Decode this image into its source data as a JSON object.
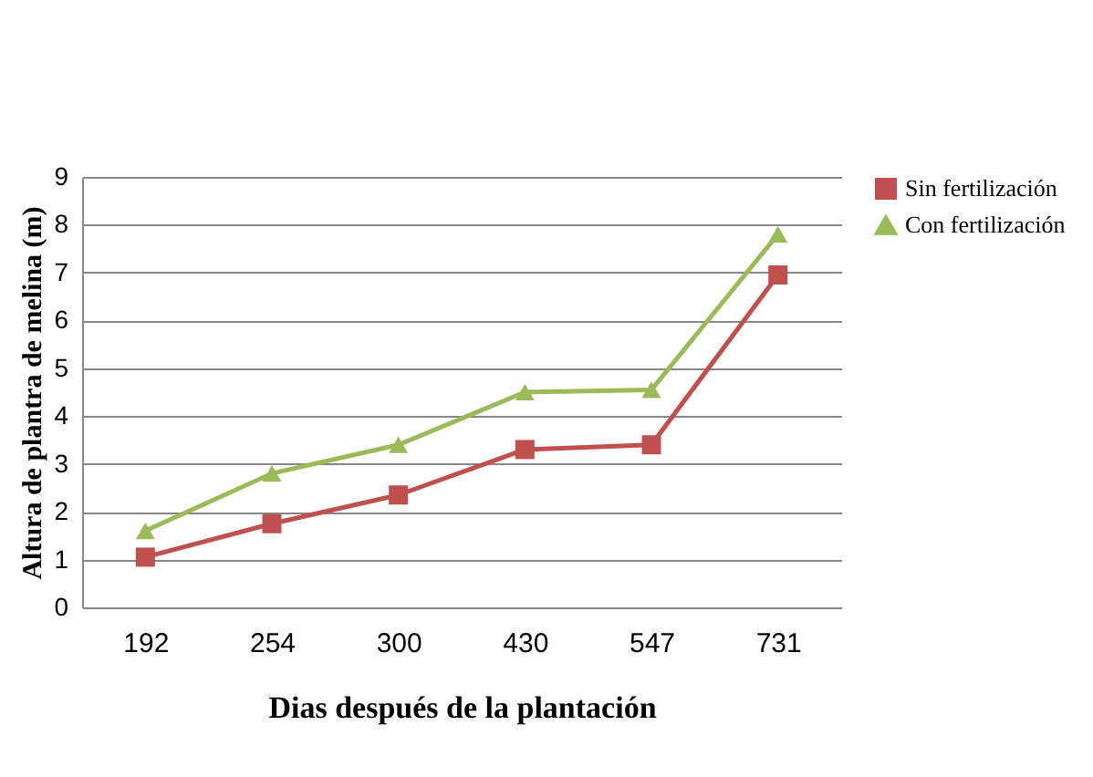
{
  "chart_data": {
    "type": "line",
    "xlabel": "Dias después de la plantación",
    "ylabel": "Altura de plantra de melina (m)",
    "categories": [
      "192",
      "254",
      "300",
      "430",
      "547",
      "731"
    ],
    "series": [
      {
        "name": "Sin fertilización",
        "color": "#c0504d",
        "marker": "square",
        "values": [
          1.05,
          1.75,
          2.35,
          3.3,
          3.4,
          6.95
        ]
      },
      {
        "name": "Con fertilización",
        "color": "#9bbb59",
        "marker": "triangle",
        "values": [
          1.6,
          2.8,
          3.4,
          4.5,
          4.55,
          7.8
        ]
      }
    ],
    "ylim": [
      0,
      9
    ],
    "yticks": [
      0,
      1,
      2,
      3,
      4,
      5,
      6,
      7,
      8,
      9
    ],
    "grid": "y",
    "legend": "right"
  }
}
